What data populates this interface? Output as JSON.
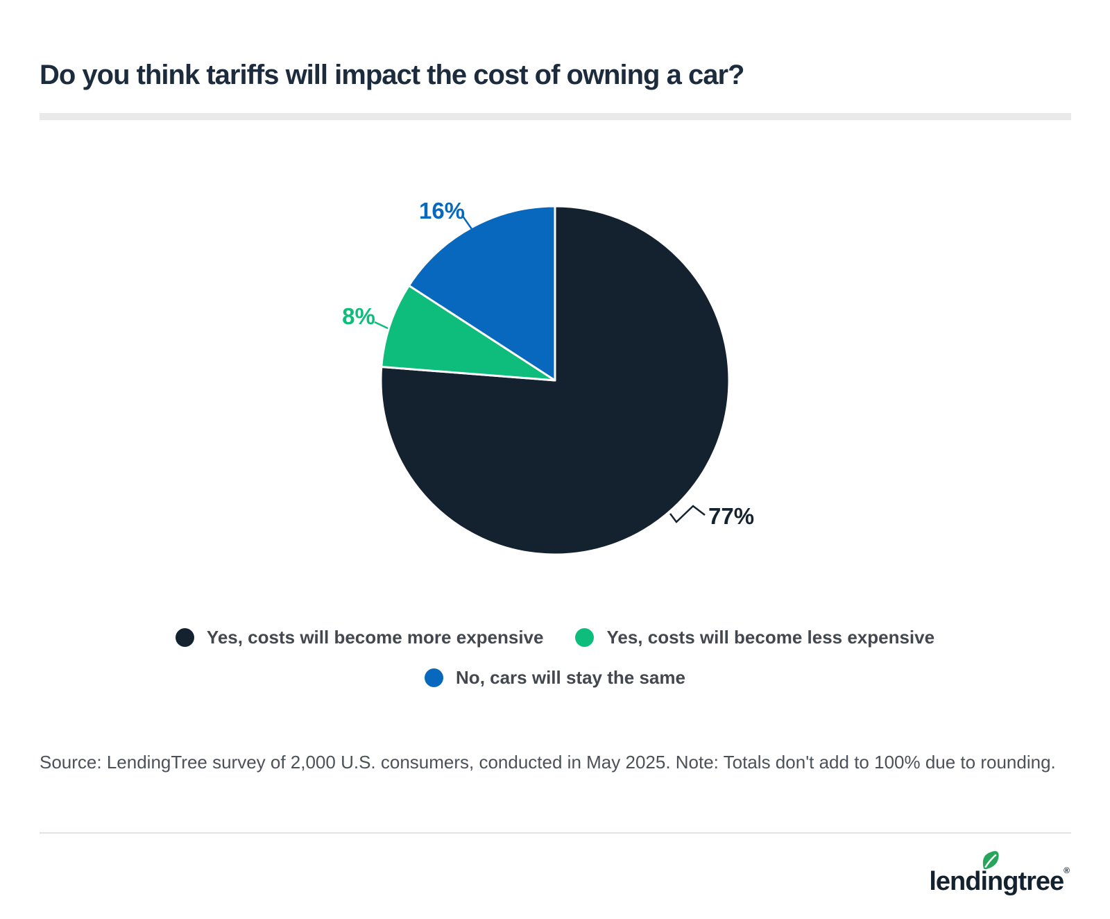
{
  "title": "Do you think tariffs will impact the cost of owning a car?",
  "chart_data": {
    "type": "pie",
    "title": "Do you think tariffs will impact the cost of owning a car?",
    "direction": "clockwise",
    "start_angle_deg": 0,
    "legend_position": "bottom",
    "slices": [
      {
        "label": "Yes, costs will become more expensive",
        "value": 77,
        "display_label": "77%",
        "color": "#14222f"
      },
      {
        "label": "Yes, costs will become less expensive",
        "value": 8,
        "display_label": "8%",
        "color": "#0ebd7b"
      },
      {
        "label": "No, cars will stay the same",
        "value": 16,
        "display_label": "16%",
        "color": "#0768be"
      }
    ]
  },
  "source": "Source: LendingTree survey of 2,000 U.S. consumers, conducted in May 2025. Note: Totals don't add to 100% due to rounding.",
  "footer": {
    "logo_text": "lendingtree",
    "registered_mark": "®",
    "leaf_color": "#27a55a"
  },
  "ui_colors": {
    "title": "#1c2c3d",
    "divider": "#e9e9e9",
    "legend_text": "#43474e",
    "background": "#ffffff"
  }
}
